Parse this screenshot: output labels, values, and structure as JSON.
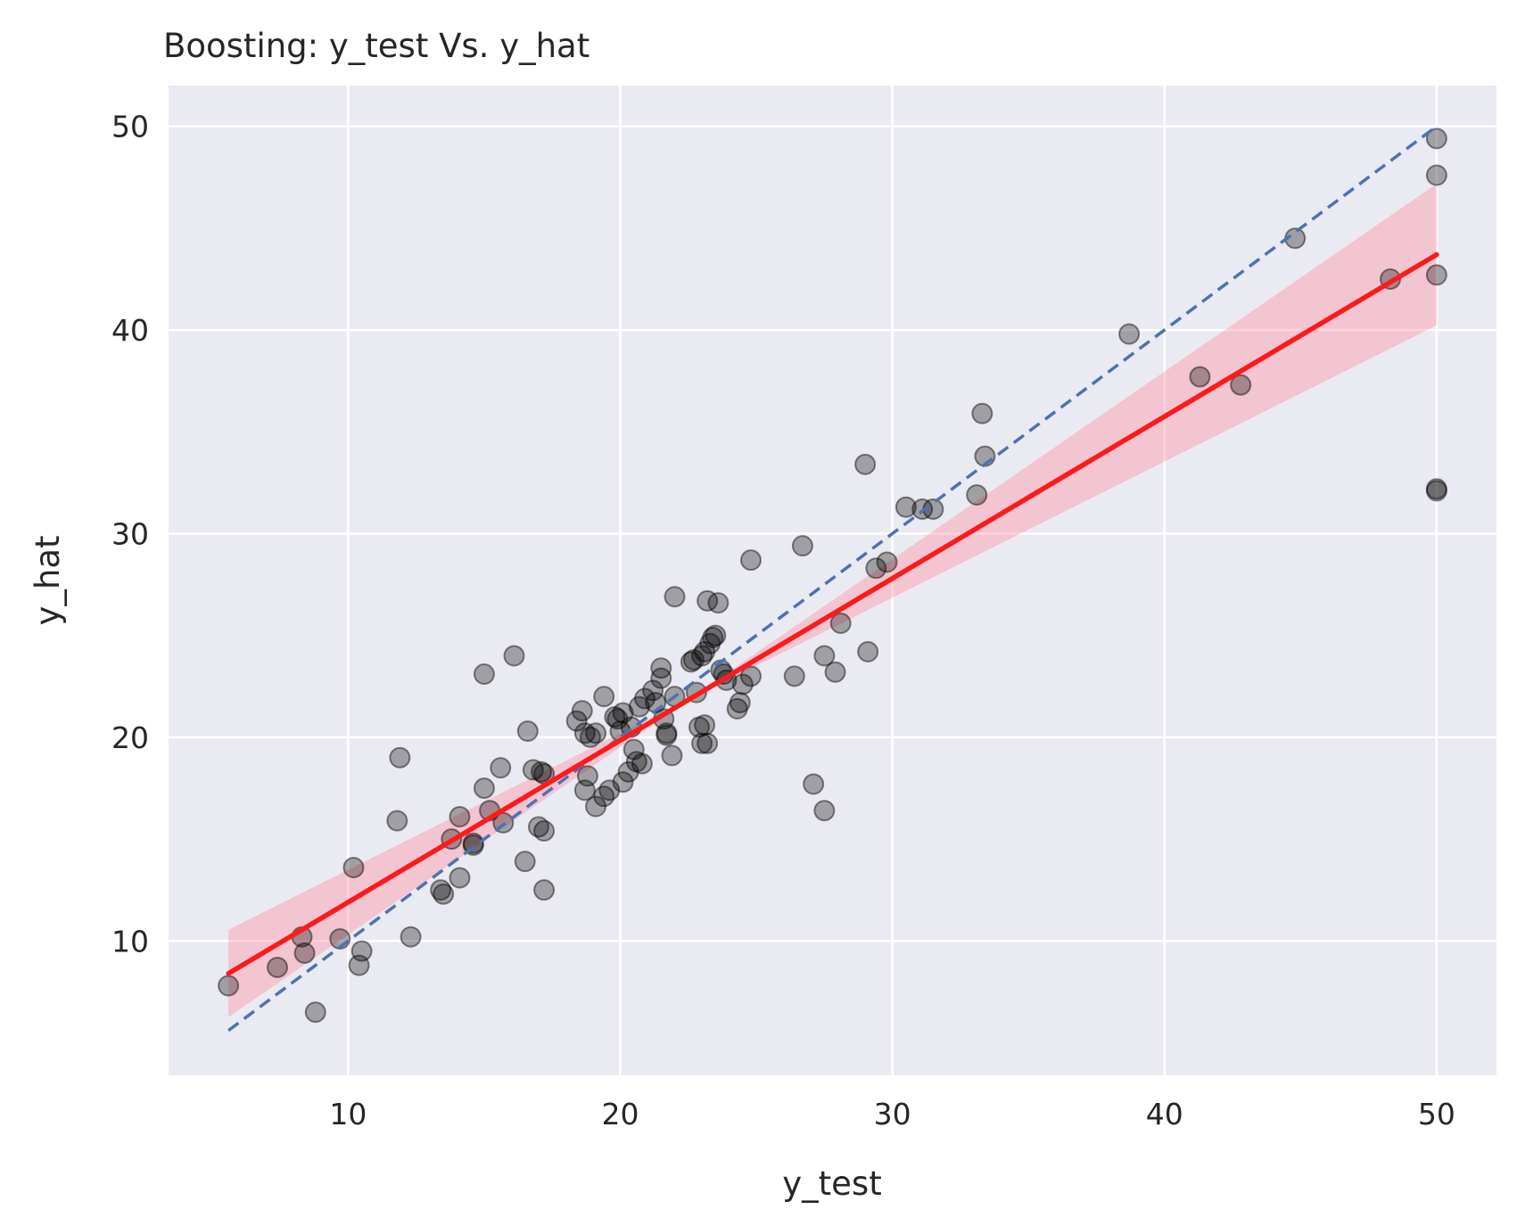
{
  "chart_data": {
    "type": "scatter",
    "title": "Boosting: y_test Vs. y_hat",
    "xlabel": "y_test",
    "ylabel": "y_hat",
    "xlim": [
      3.4,
      52.2
    ],
    "ylim": [
      3.4,
      52.0
    ],
    "xticks": [
      10,
      20,
      30,
      40,
      50
    ],
    "yticks": [
      10,
      20,
      30,
      40,
      50
    ],
    "grid": true,
    "colors": {
      "background": "#eaeaf2",
      "grid": "#ffffff",
      "points": "#000000",
      "regression": "#ff1a1a",
      "confidence_band": "#ff9aa8",
      "identity": "#4c72b0"
    },
    "series": [
      {
        "kind": "points",
        "x": [
          5.6,
          7.4,
          8.3,
          8.4,
          8.8,
          9.7,
          10.2,
          10.4,
          10.5,
          11.8,
          11.9,
          12.3,
          13.4,
          13.5,
          13.8,
          14.1,
          14.1,
          14.6,
          14.6,
          15.0,
          15.0,
          15.2,
          15.6,
          15.7,
          16.1,
          16.5,
          16.6,
          16.8,
          17.0,
          17.1,
          17.2,
          17.2,
          17.2,
          18.4,
          18.6,
          18.7,
          18.7,
          18.8,
          18.9,
          19.1,
          19.1,
          19.4,
          19.4,
          19.6,
          19.8,
          19.9,
          20.0,
          20.1,
          20.1,
          20.3,
          20.4,
          20.5,
          20.6,
          20.7,
          20.8,
          20.9,
          21.2,
          21.3,
          21.5,
          21.5,
          21.6,
          21.7,
          21.7,
          21.9,
          22.0,
          22.0,
          22.6,
          22.7,
          22.8,
          22.9,
          23.0,
          23.0,
          23.1,
          23.1,
          23.2,
          23.2,
          23.3,
          23.4,
          23.5,
          23.6,
          23.7,
          23.8,
          23.9,
          24.3,
          24.4,
          24.5,
          24.8,
          24.8,
          26.4,
          26.7,
          27.1,
          27.5,
          27.5,
          27.9,
          28.1,
          29.0,
          29.1,
          29.4,
          29.8,
          30.5,
          31.1,
          31.5,
          33.1,
          33.3,
          33.4,
          38.7,
          41.3,
          42.8,
          44.8,
          48.3,
          50.0,
          50.0,
          50.0,
          50.0,
          50.0
        ],
        "y": [
          7.8,
          8.7,
          10.2,
          9.4,
          6.5,
          10.1,
          13.6,
          8.8,
          9.5,
          15.9,
          19.0,
          10.2,
          12.5,
          12.3,
          15.0,
          13.1,
          16.1,
          14.8,
          14.7,
          17.5,
          23.1,
          16.4,
          18.5,
          15.8,
          24.0,
          13.9,
          20.3,
          18.4,
          15.6,
          18.3,
          12.5,
          15.4,
          18.2,
          20.8,
          21.3,
          20.2,
          17.4,
          18.1,
          20.0,
          16.6,
          20.2,
          22.0,
          17.1,
          17.4,
          21.0,
          20.9,
          20.3,
          17.8,
          21.2,
          18.3,
          20.5,
          19.4,
          18.8,
          21.5,
          18.7,
          21.9,
          22.3,
          21.7,
          23.4,
          22.9,
          20.9,
          20.1,
          20.2,
          19.1,
          22.0,
          26.9,
          23.7,
          23.8,
          22.2,
          20.5,
          24.0,
          19.7,
          24.2,
          20.6,
          26.7,
          19.7,
          24.6,
          24.9,
          25.0,
          26.6,
          23.3,
          23.1,
          22.8,
          21.4,
          21.7,
          22.6,
          23.0,
          28.7,
          23.0,
          29.4,
          17.7,
          24.0,
          16.4,
          23.2,
          25.6,
          33.4,
          24.2,
          28.3,
          28.6,
          31.3,
          31.2,
          31.2,
          31.9,
          35.9,
          33.8,
          39.8,
          37.7,
          37.3,
          44.5,
          42.5,
          49.4,
          47.6,
          42.7,
          32.2,
          32.1
        ]
      },
      {
        "kind": "regression",
        "x": [
          5.6,
          50.0
        ],
        "y": [
          8.4,
          43.7
        ],
        "band_lower": [
          7.4,
          40.6
        ],
        "band_upper": [
          9.9,
          46.6
        ]
      },
      {
        "kind": "identity",
        "x": [
          5.6,
          50.0
        ],
        "y": [
          5.6,
          50.0
        ]
      }
    ]
  }
}
